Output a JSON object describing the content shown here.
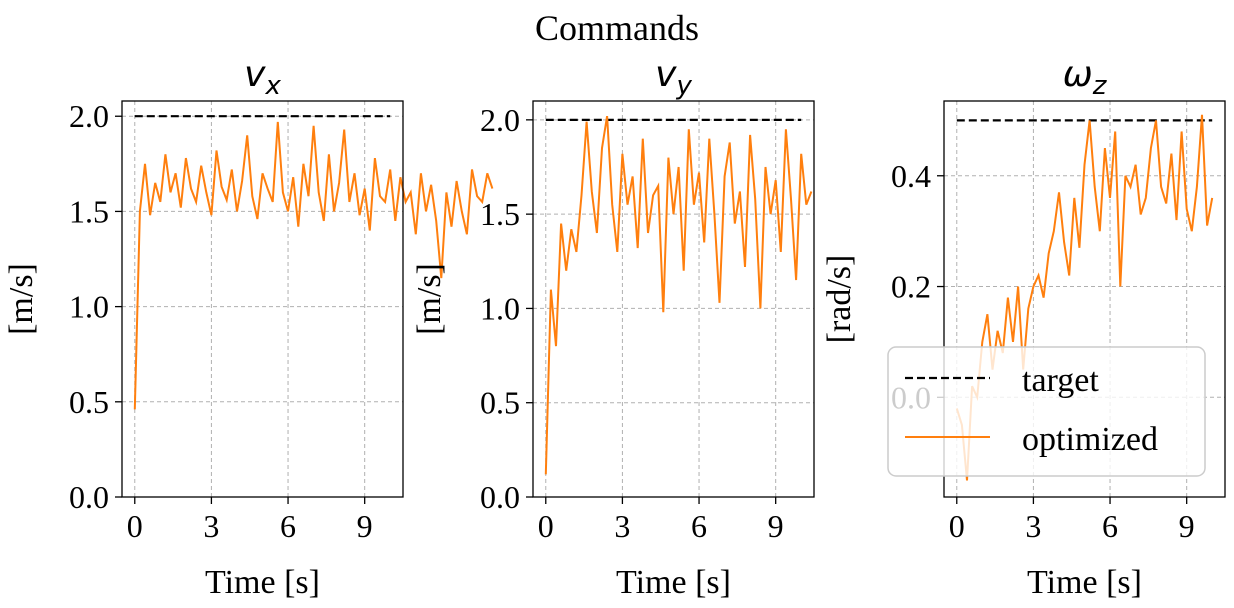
{
  "figure_title": "Commands",
  "colors": {
    "target": "#000000",
    "optimized": "#ff7f0e",
    "grid": "#b0b0b0",
    "legend_border": "#cccccc"
  },
  "chart_data": [
    {
      "type": "line",
      "title": "v_x",
      "title_main": "v",
      "title_sub": "x",
      "xlabel": "Time [s]",
      "ylabel": "[m/s]",
      "xlim": [
        -0.5,
        10.5
      ],
      "ylim": [
        0.0,
        2.08
      ],
      "xticks": [
        0,
        3,
        6,
        9
      ],
      "xtick_labels": [
        "0",
        "3",
        "6",
        "9"
      ],
      "yticks": [
        0.0,
        0.5,
        1.0,
        1.5,
        2.0
      ],
      "ytick_labels": [
        "0.0",
        "0.5",
        "1.0",
        "1.5",
        "2.0"
      ],
      "grid": true,
      "series": [
        {
          "name": "target",
          "style": "dashed",
          "x": [
            0,
            10
          ],
          "y": [
            2.0,
            2.0
          ]
        },
        {
          "name": "optimized",
          "style": "solid",
          "x_start": 0,
          "x_step": 0.2,
          "y": [
            0.46,
            1.5,
            1.75,
            1.48,
            1.65,
            1.55,
            1.8,
            1.6,
            1.7,
            1.52,
            1.78,
            1.62,
            1.55,
            1.74,
            1.6,
            1.48,
            1.82,
            1.63,
            1.56,
            1.72,
            1.5,
            1.66,
            1.9,
            1.58,
            1.46,
            1.7,
            1.62,
            1.55,
            1.97,
            1.6,
            1.5,
            1.68,
            1.42,
            1.75,
            1.58,
            1.95,
            1.6,
            1.45,
            1.8,
            1.5,
            1.65,
            1.93,
            1.55,
            1.7,
            1.48,
            1.62,
            1.4,
            1.78,
            1.58,
            1.55,
            1.72,
            1.45,
            1.68,
            1.55,
            1.6,
            1.38,
            1.7,
            1.5,
            1.64,
            1.45,
            1.15,
            1.6,
            1.42,
            1.66,
            1.5,
            1.38,
            1.72,
            1.58,
            1.55,
            1.7,
            1.62
          ]
        }
      ]
    },
    {
      "type": "line",
      "title": "v_y",
      "title_main": "v",
      "title_sub": "y",
      "xlabel": "Time [s]",
      "ylabel": "[m/s]",
      "xlim": [
        -0.5,
        10.5
      ],
      "ylim": [
        0.0,
        2.1
      ],
      "xticks": [
        0,
        3,
        6,
        9
      ],
      "xtick_labels": [
        "0",
        "3",
        "6",
        "9"
      ],
      "yticks": [
        0.0,
        0.5,
        1.0,
        1.5,
        2.0
      ],
      "ytick_labels": [
        "0.0",
        "0.5",
        "1.0",
        "1.5",
        "2.0"
      ],
      "grid": true,
      "series": [
        {
          "name": "target",
          "style": "dashed",
          "x": [
            0,
            10
          ],
          "y": [
            2.0,
            2.0
          ]
        },
        {
          "name": "optimized",
          "style": "solid",
          "x_start": 0,
          "x_step": 0.2,
          "y": [
            0.12,
            1.1,
            0.8,
            1.45,
            1.2,
            1.42,
            1.3,
            1.6,
            1.99,
            1.62,
            1.4,
            1.85,
            2.02,
            1.55,
            1.3,
            1.82,
            1.55,
            1.7,
            1.32,
            1.9,
            1.4,
            1.6,
            1.65,
            0.98,
            1.8,
            1.5,
            1.75,
            1.2,
            1.95,
            1.55,
            1.72,
            1.35,
            1.9,
            1.5,
            1.03,
            1.7,
            1.88,
            1.45,
            1.62,
            1.22,
            1.92,
            1.58,
            1.0,
            1.75,
            1.5,
            1.68,
            1.3,
            1.95,
            1.58,
            1.15,
            1.82,
            1.55,
            1.62
          ]
        }
      ]
    },
    {
      "type": "line",
      "title": "ω_z",
      "title_main": "ω",
      "title_sub": "z",
      "xlabel": "Time [s]",
      "ylabel": "[rad/s]",
      "xlim": [
        -0.5,
        10.5
      ],
      "ylim": [
        -0.18,
        0.535
      ],
      "xticks": [
        0,
        3,
        6,
        9
      ],
      "xtick_labels": [
        "0",
        "3",
        "6",
        "9"
      ],
      "yticks": [
        0.0,
        0.2,
        0.4
      ],
      "ytick_labels": [
        "0.0",
        "0.2",
        "0.4"
      ],
      "grid": true,
      "series": [
        {
          "name": "target",
          "style": "dashed",
          "x": [
            0,
            10
          ],
          "y": [
            0.5,
            0.5
          ]
        },
        {
          "name": "optimized",
          "style": "solid",
          "x_start": 0,
          "x_step": 0.2,
          "y": [
            -0.02,
            -0.05,
            -0.15,
            0.02,
            0.0,
            0.1,
            0.15,
            0.05,
            0.12,
            0.08,
            0.18,
            0.1,
            0.2,
            0.05,
            0.16,
            0.2,
            0.22,
            0.18,
            0.26,
            0.3,
            0.37,
            0.28,
            0.22,
            0.36,
            0.27,
            0.42,
            0.5,
            0.38,
            0.3,
            0.45,
            0.36,
            0.48,
            0.2,
            0.4,
            0.38,
            0.42,
            0.33,
            0.36,
            0.45,
            0.5,
            0.38,
            0.35,
            0.44,
            0.32,
            0.48,
            0.34,
            0.3,
            0.38,
            0.51,
            0.31,
            0.36
          ]
        }
      ],
      "legend": {
        "location": "lower-right",
        "entries": [
          "target",
          "optimized"
        ]
      }
    }
  ]
}
